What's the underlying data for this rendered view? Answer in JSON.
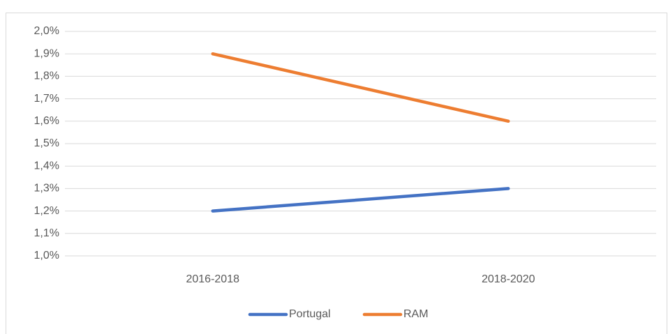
{
  "chart_data": {
    "type": "line",
    "categories": [
      "2016-2018",
      "2018-2020"
    ],
    "series": [
      {
        "name": "Portugal",
        "color": "#4472c4",
        "values": [
          1.2,
          1.3
        ]
      },
      {
        "name": "RAM",
        "color": "#ed7d31",
        "values": [
          1.9,
          1.6
        ]
      }
    ],
    "ylim": [
      1.0,
      2.0
    ],
    "yticks": [
      {
        "value": 1.0,
        "label": "1,0%"
      },
      {
        "value": 1.1,
        "label": "1,1%"
      },
      {
        "value": 1.2,
        "label": "1,2%"
      },
      {
        "value": 1.3,
        "label": "1,3%"
      },
      {
        "value": 1.4,
        "label": "1,4%"
      },
      {
        "value": 1.5,
        "label": "1,5%"
      },
      {
        "value": 1.6,
        "label": "1,6%"
      },
      {
        "value": 1.7,
        "label": "1,7%"
      },
      {
        "value": 1.8,
        "label": "1,8%"
      },
      {
        "value": 1.9,
        "label": "1,9%"
      },
      {
        "value": 2.0,
        "label": "2,0%"
      }
    ],
    "grid": true,
    "legend": "bottom"
  }
}
